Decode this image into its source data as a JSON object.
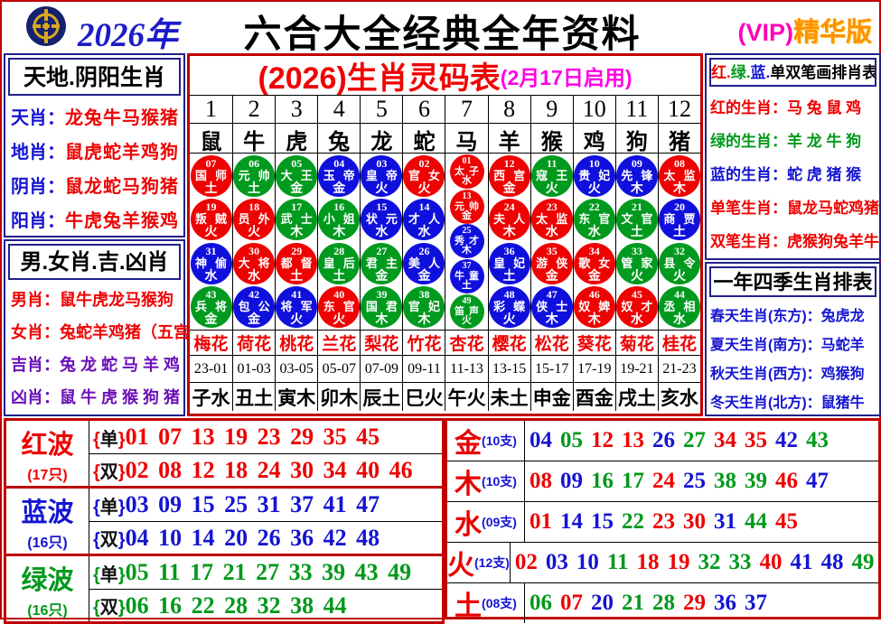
{
  "header": {
    "year": "2026年",
    "title": "六合大全经典全年资料",
    "vip": "(VIP)",
    "vip_suffix": "精华版",
    "logo_icon": "coin-emblem-icon",
    "colors": {
      "year": "#1c1cc8",
      "title": "#000000",
      "vip": "#ff00bb",
      "vip_suffix": "#ff9100"
    }
  },
  "left_top": {
    "title": "天地.阴阳生肖",
    "rows": [
      {
        "label": "天肖",
        "value": "龙兔牛马猴猪"
      },
      {
        "label": "地肖",
        "value": "鼠虎蛇羊鸡狗"
      },
      {
        "label": "阴肖",
        "value": "鼠龙蛇马狗猪"
      },
      {
        "label": "阳肖",
        "value": "牛虎兔羊猴鸡"
      }
    ]
  },
  "left_bottom": {
    "title": "男.女肖.吉.凶肖",
    "rows": [
      {
        "label": "男肖",
        "value": "鼠牛虎龙马猴狗",
        "color": "red"
      },
      {
        "label": "女肖",
        "value": "兔蛇羊鸡猪（五宫）",
        "color": "red"
      },
      {
        "label": "吉肖",
        "value": "兔 龙 蛇 马 羊 鸡",
        "color": "purple"
      },
      {
        "label": "凶肖",
        "value": "鼠 牛 虎 猴 狗 猪",
        "color": "purple"
      }
    ]
  },
  "right_top": {
    "title_segments": [
      {
        "text": "红.",
        "color": "red"
      },
      {
        "text": "绿.",
        "color": "green"
      },
      {
        "text": "蓝.",
        "color": "blue"
      },
      {
        "text": "单双笔画排肖表",
        "color": "black"
      }
    ],
    "rows": [
      {
        "label": "红的生肖",
        "value": "马 兔 鼠 鸡",
        "color": "red"
      },
      {
        "label": "绿的生肖",
        "value": "羊 龙 牛 狗",
        "color": "green"
      },
      {
        "label": "蓝的生肖",
        "value": "蛇 虎 猪 猴",
        "color": "blue"
      },
      {
        "label": "单笔生肖",
        "value": "鼠龙马蛇鸡猪",
        "color": "red"
      },
      {
        "label": "双笔生肖",
        "value": "虎猴狗兔羊牛",
        "color": "red"
      }
    ]
  },
  "right_bottom": {
    "title": "一年四季生肖排表",
    "rows": [
      {
        "label": "春天生肖(东方)",
        "value": "兔虎龙"
      },
      {
        "label": "夏天生肖(南方)",
        "value": "马蛇羊"
      },
      {
        "label": "秋天生肖(西方)",
        "value": "鸡猴狗"
      },
      {
        "label": "冬天生肖(北方)",
        "value": "鼠猪牛"
      }
    ]
  },
  "main_table": {
    "title": "(2026)生肖灵码表",
    "subtitle": "(2月17日启用)",
    "columns": [
      {
        "num": "1",
        "zodiac": "鼠",
        "flower": "梅花",
        "time": "23-01",
        "branch": "子水",
        "balls": [
          {
            "n": "07",
            "t": "国师",
            "e": "土",
            "c": "red"
          },
          {
            "n": "19",
            "t": "叛贼",
            "e": "火",
            "c": "red"
          },
          {
            "n": "31",
            "t": "神偷",
            "e": "水",
            "c": "blue"
          },
          {
            "n": "43",
            "t": "兵将",
            "e": "金",
            "c": "green"
          }
        ]
      },
      {
        "num": "2",
        "zodiac": "牛",
        "flower": "荷花",
        "time": "01-03",
        "branch": "丑土",
        "balls": [
          {
            "n": "06",
            "t": "元帅",
            "e": "土",
            "c": "green"
          },
          {
            "n": "18",
            "t": "员外",
            "e": "火",
            "c": "red"
          },
          {
            "n": "30",
            "t": "大将",
            "e": "水",
            "c": "red"
          },
          {
            "n": "42",
            "t": "包公",
            "e": "金",
            "c": "blue"
          }
        ]
      },
      {
        "num": "3",
        "zodiac": "虎",
        "flower": "桃花",
        "time": "03-05",
        "branch": "寅木",
        "balls": [
          {
            "n": "05",
            "t": "大王",
            "e": "金",
            "c": "green"
          },
          {
            "n": "17",
            "t": "武士",
            "e": "木",
            "c": "green"
          },
          {
            "n": "29",
            "t": "都督",
            "e": "土",
            "c": "red"
          },
          {
            "n": "41",
            "t": "将军",
            "e": "火",
            "c": "blue"
          }
        ]
      },
      {
        "num": "4",
        "zodiac": "兔",
        "flower": "兰花",
        "time": "05-07",
        "branch": "卯木",
        "balls": [
          {
            "n": "04",
            "t": "玉帝",
            "e": "金",
            "c": "blue"
          },
          {
            "n": "16",
            "t": "小姐",
            "e": "木",
            "c": "green"
          },
          {
            "n": "28",
            "t": "皇后",
            "e": "土",
            "c": "green"
          },
          {
            "n": "40",
            "t": "东官",
            "e": "火",
            "c": "red"
          }
        ]
      },
      {
        "num": "5",
        "zodiac": "龙",
        "flower": "梨花",
        "time": "07-09",
        "branch": "辰土",
        "balls": [
          {
            "n": "03",
            "t": "皇帝",
            "e": "火",
            "c": "blue"
          },
          {
            "n": "15",
            "t": "状元",
            "e": "水",
            "c": "blue"
          },
          {
            "n": "27",
            "t": "君主",
            "e": "金",
            "c": "green"
          },
          {
            "n": "39",
            "t": "国君",
            "e": "木",
            "c": "green"
          }
        ]
      },
      {
        "num": "6",
        "zodiac": "蛇",
        "flower": "竹花",
        "time": "09-11",
        "branch": "巳火",
        "balls": [
          {
            "n": "02",
            "t": "官女",
            "e": "火",
            "c": "red"
          },
          {
            "n": "14",
            "t": "才人",
            "e": "水",
            "c": "blue"
          },
          {
            "n": "26",
            "t": "美人",
            "e": "金",
            "c": "blue"
          },
          {
            "n": "38",
            "t": "官妃",
            "e": "木",
            "c": "green"
          }
        ]
      },
      {
        "num": "7",
        "zodiac": "马",
        "flower": "杏花",
        "time": "11-13",
        "branch": "午火",
        "small": true,
        "balls": [
          {
            "n": "01",
            "t": "太子",
            "e": "水",
            "c": "red"
          },
          {
            "n": "13",
            "t": "元帅",
            "e": "金",
            "c": "red"
          },
          {
            "n": "25",
            "t": "秀才",
            "e": "木",
            "c": "blue"
          },
          {
            "n": "37",
            "t": "牛童",
            "e": "土",
            "c": "blue"
          },
          {
            "n": "49",
            "t": "笛声",
            "e": "火",
            "c": "green"
          }
        ]
      },
      {
        "num": "8",
        "zodiac": "羊",
        "flower": "樱花",
        "time": "13-15",
        "branch": "未土",
        "balls": [
          {
            "n": "12",
            "t": "西宫",
            "e": "金",
            "c": "red"
          },
          {
            "n": "24",
            "t": "夫人",
            "e": "木",
            "c": "red"
          },
          {
            "n": "36",
            "t": "皇妃",
            "e": "土",
            "c": "blue"
          },
          {
            "n": "48",
            "t": "彩蝶",
            "e": "火",
            "c": "blue"
          }
        ]
      },
      {
        "num": "9",
        "zodiac": "猴",
        "flower": "松花",
        "time": "15-17",
        "branch": "申金",
        "balls": [
          {
            "n": "11",
            "t": "寇王",
            "e": "火",
            "c": "green"
          },
          {
            "n": "23",
            "t": "太监",
            "e": "水",
            "c": "red"
          },
          {
            "n": "35",
            "t": "游侠",
            "e": "金",
            "c": "red"
          },
          {
            "n": "47",
            "t": "侠士",
            "e": "木",
            "c": "blue"
          }
        ]
      },
      {
        "num": "10",
        "zodiac": "鸡",
        "flower": "葵花",
        "time": "17-19",
        "branch": "酉金",
        "balls": [
          {
            "n": "10",
            "t": "贵妃",
            "e": "火",
            "c": "blue"
          },
          {
            "n": "22",
            "t": "东官",
            "e": "水",
            "c": "green"
          },
          {
            "n": "34",
            "t": "歌女",
            "e": "金",
            "c": "red"
          },
          {
            "n": "46",
            "t": "奴婢",
            "e": "木",
            "c": "red"
          }
        ]
      },
      {
        "num": "11",
        "zodiac": "狗",
        "flower": "菊花",
        "time": "19-21",
        "branch": "戌土",
        "balls": [
          {
            "n": "09",
            "t": "先锋",
            "e": "木",
            "c": "blue"
          },
          {
            "n": "21",
            "t": "文官",
            "e": "土",
            "c": "green"
          },
          {
            "n": "33",
            "t": "管家",
            "e": "火",
            "c": "green"
          },
          {
            "n": "45",
            "t": "奴才",
            "e": "水",
            "c": "red"
          }
        ]
      },
      {
        "num": "12",
        "zodiac": "猪",
        "flower": "桂花",
        "time": "21-23",
        "branch": "亥水",
        "balls": [
          {
            "n": "08",
            "t": "太监",
            "e": "木",
            "c": "red"
          },
          {
            "n": "20",
            "t": "商贾",
            "e": "土",
            "c": "blue"
          },
          {
            "n": "32",
            "t": "县令",
            "e": "火",
            "c": "green"
          },
          {
            "n": "44",
            "t": "丞相",
            "e": "水",
            "c": "green"
          }
        ]
      }
    ]
  },
  "waves": [
    {
      "name": "红波",
      "count": "(17只)",
      "color": "red",
      "rows": [
        {
          "tag": "单",
          "nums": "01 07 13 19 23 29 35 45"
        },
        {
          "tag": "双",
          "nums": "02 08 12 18 24 30 34 40 46"
        }
      ]
    },
    {
      "name": "蓝波",
      "count": "(16只)",
      "color": "blue",
      "rows": [
        {
          "tag": "单",
          "nums": "03 09 15 25 31 37 41 47"
        },
        {
          "tag": "双",
          "nums": "04 10 14 20 26 36 42 48"
        }
      ]
    },
    {
      "name": "绿波",
      "count": "(16只)",
      "color": "green",
      "rows": [
        {
          "tag": "单",
          "nums": "05 11 17 21 27 33 39 43 49"
        },
        {
          "tag": "双",
          "nums": "06 16 22 28 32 38 44"
        }
      ]
    }
  ],
  "elements": [
    {
      "name": "金",
      "count": "(10支)",
      "nums": [
        {
          "n": "04",
          "c": "blue"
        },
        {
          "n": "05",
          "c": "green"
        },
        {
          "n": "12",
          "c": "red"
        },
        {
          "n": "13",
          "c": "red"
        },
        {
          "n": "26",
          "c": "blue"
        },
        {
          "n": "27",
          "c": "green"
        },
        {
          "n": "34",
          "c": "red"
        },
        {
          "n": "35",
          "c": "red"
        },
        {
          "n": "42",
          "c": "blue"
        },
        {
          "n": "43",
          "c": "green"
        }
      ]
    },
    {
      "name": "木",
      "count": "(10支)",
      "nums": [
        {
          "n": "08",
          "c": "red"
        },
        {
          "n": "09",
          "c": "blue"
        },
        {
          "n": "16",
          "c": "green"
        },
        {
          "n": "17",
          "c": "green"
        },
        {
          "n": "24",
          "c": "red"
        },
        {
          "n": "25",
          "c": "blue"
        },
        {
          "n": "38",
          "c": "green"
        },
        {
          "n": "39",
          "c": "green"
        },
        {
          "n": "46",
          "c": "red"
        },
        {
          "n": "47",
          "c": "blue"
        }
      ]
    },
    {
      "name": "水",
      "count": "(09支)",
      "nums": [
        {
          "n": "01",
          "c": "red"
        },
        {
          "n": "14",
          "c": "blue"
        },
        {
          "n": "15",
          "c": "blue"
        },
        {
          "n": "22",
          "c": "green"
        },
        {
          "n": "23",
          "c": "red"
        },
        {
          "n": "30",
          "c": "red"
        },
        {
          "n": "31",
          "c": "blue"
        },
        {
          "n": "44",
          "c": "green"
        },
        {
          "n": "45",
          "c": "red"
        }
      ]
    },
    {
      "name": "火",
      "count": "(12支)",
      "nums": [
        {
          "n": "02",
          "c": "red"
        },
        {
          "n": "03",
          "c": "blue"
        },
        {
          "n": "10",
          "c": "blue"
        },
        {
          "n": "11",
          "c": "green"
        },
        {
          "n": "18",
          "c": "red"
        },
        {
          "n": "19",
          "c": "red"
        },
        {
          "n": "32",
          "c": "green"
        },
        {
          "n": "33",
          "c": "green"
        },
        {
          "n": "40",
          "c": "red"
        },
        {
          "n": "41",
          "c": "blue"
        },
        {
          "n": "48",
          "c": "blue"
        },
        {
          "n": "49",
          "c": "green"
        }
      ]
    },
    {
      "name": "土",
      "count": "(08支)",
      "nums": [
        {
          "n": "06",
          "c": "green"
        },
        {
          "n": "07",
          "c": "red"
        },
        {
          "n": "20",
          "c": "blue"
        },
        {
          "n": "21",
          "c": "green"
        },
        {
          "n": "28",
          "c": "green"
        },
        {
          "n": "29",
          "c": "red"
        },
        {
          "n": "36",
          "c": "blue"
        },
        {
          "n": "37",
          "c": "blue"
        }
      ]
    }
  ],
  "status_colors": {
    "red": "#ee0202",
    "blue": "#1414d2",
    "green": "#00991a",
    "purple": "#6a10b8"
  }
}
